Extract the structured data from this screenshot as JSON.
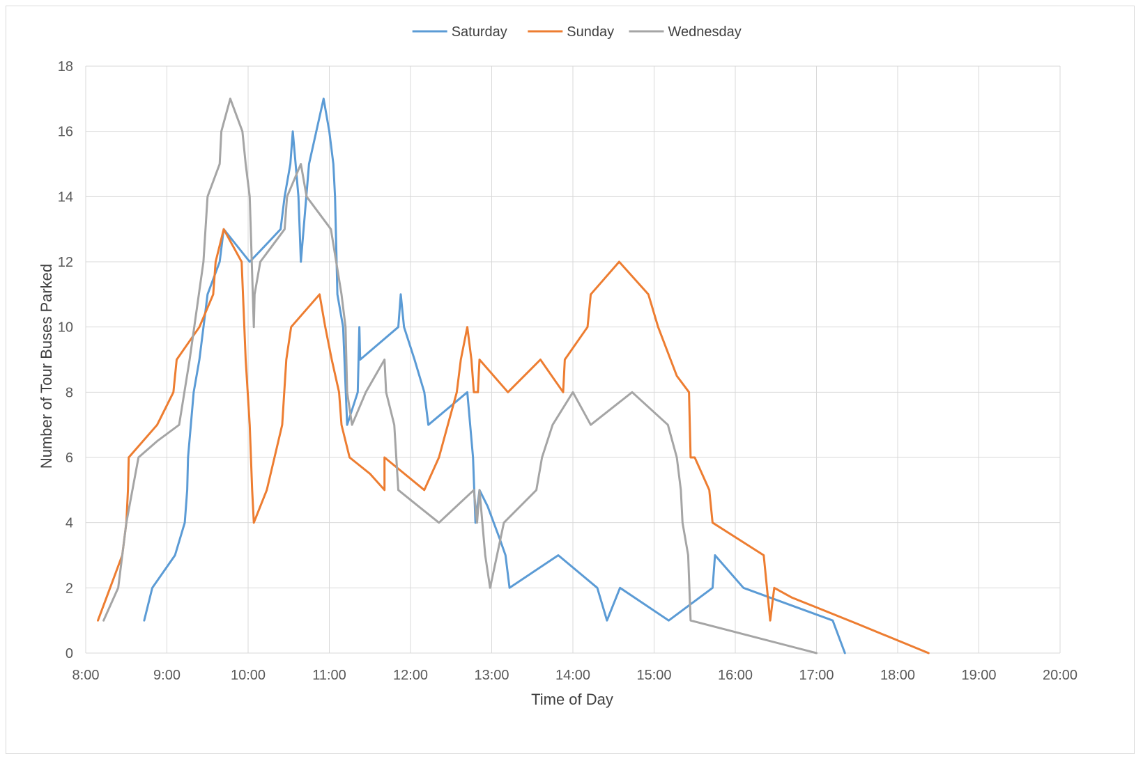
{
  "chart_data": {
    "type": "line",
    "xlabel": "Time of Day",
    "ylabel": "Number of Tour Buses Parked",
    "xlim": [
      8,
      20
    ],
    "ylim": [
      0,
      18
    ],
    "x_ticks": [
      "8:00",
      "9:00",
      "10:00",
      "11:00",
      "12:00",
      "13:00",
      "14:00",
      "15:00",
      "16:00",
      "17:00",
      "18:00",
      "19:00",
      "20:00"
    ],
    "y_ticks": [
      0,
      2,
      4,
      6,
      8,
      10,
      12,
      14,
      16,
      18
    ],
    "grid": true,
    "legend_position": "top",
    "series": [
      {
        "name": "Saturday",
        "color": "#5b9bd5",
        "points": [
          [
            8.72,
            1
          ],
          [
            8.82,
            2
          ],
          [
            9.1,
            3
          ],
          [
            9.22,
            4
          ],
          [
            9.25,
            5
          ],
          [
            9.26,
            6
          ],
          [
            9.33,
            8
          ],
          [
            9.4,
            9
          ],
          [
            9.5,
            11
          ],
          [
            9.65,
            12
          ],
          [
            9.7,
            13
          ],
          [
            10.02,
            12
          ],
          [
            10.25,
            12.6
          ],
          [
            10.4,
            13
          ],
          [
            10.45,
            14
          ],
          [
            10.52,
            15
          ],
          [
            10.55,
            16
          ],
          [
            10.62,
            14
          ],
          [
            10.65,
            12
          ],
          [
            10.75,
            15
          ],
          [
            10.93,
            17
          ],
          [
            11.0,
            16
          ],
          [
            11.05,
            15
          ],
          [
            11.07,
            14
          ],
          [
            11.1,
            11
          ],
          [
            11.17,
            10
          ],
          [
            11.22,
            7
          ],
          [
            11.35,
            8
          ],
          [
            11.37,
            10
          ],
          [
            11.38,
            9
          ],
          [
            11.85,
            10
          ],
          [
            11.88,
            11
          ],
          [
            11.92,
            10
          ],
          [
            12.05,
            9
          ],
          [
            12.17,
            8
          ],
          [
            12.22,
            7
          ],
          [
            12.7,
            8
          ],
          [
            12.77,
            6
          ],
          [
            12.8,
            4
          ],
          [
            12.85,
            5
          ],
          [
            12.95,
            4.5
          ],
          [
            13.1,
            3.5
          ],
          [
            13.17,
            3
          ],
          [
            13.22,
            2
          ],
          [
            13.82,
            3
          ],
          [
            14.3,
            2
          ],
          [
            14.42,
            1
          ],
          [
            14.58,
            2
          ],
          [
            15.18,
            1
          ],
          [
            15.72,
            2
          ],
          [
            15.75,
            3
          ],
          [
            16.1,
            2
          ],
          [
            17.2,
            1
          ],
          [
            17.35,
            0
          ]
        ]
      },
      {
        "name": "Sunday",
        "color": "#ed7d31",
        "points": [
          [
            8.15,
            1
          ],
          [
            8.3,
            2
          ],
          [
            8.45,
            3
          ],
          [
            8.5,
            4
          ],
          [
            8.52,
            5
          ],
          [
            8.53,
            6
          ],
          [
            8.88,
            7
          ],
          [
            9.08,
            8
          ],
          [
            9.12,
            9
          ],
          [
            9.4,
            10
          ],
          [
            9.57,
            11
          ],
          [
            9.6,
            12
          ],
          [
            9.7,
            13
          ],
          [
            9.92,
            12
          ],
          [
            9.97,
            9
          ],
          [
            10.02,
            7
          ],
          [
            10.05,
            5
          ],
          [
            10.07,
            4
          ],
          [
            10.23,
            5
          ],
          [
            10.42,
            7
          ],
          [
            10.47,
            9
          ],
          [
            10.53,
            10
          ],
          [
            10.88,
            11
          ],
          [
            10.95,
            10
          ],
          [
            11.03,
            9
          ],
          [
            11.12,
            8
          ],
          [
            11.15,
            7
          ],
          [
            11.25,
            6
          ],
          [
            11.5,
            5.5
          ],
          [
            11.68,
            5
          ],
          [
            11.68,
            6
          ],
          [
            12.17,
            5
          ],
          [
            12.35,
            6
          ],
          [
            12.57,
            8
          ],
          [
            12.62,
            9
          ],
          [
            12.7,
            10
          ],
          [
            12.75,
            9
          ],
          [
            12.78,
            8
          ],
          [
            12.83,
            8
          ],
          [
            12.85,
            9
          ],
          [
            13.2,
            8
          ],
          [
            13.6,
            9
          ],
          [
            13.88,
            8
          ],
          [
            13.9,
            9
          ],
          [
            14.18,
            10
          ],
          [
            14.22,
            11
          ],
          [
            14.57,
            12
          ],
          [
            14.93,
            11
          ],
          [
            15.05,
            10
          ],
          [
            15.28,
            8.5
          ],
          [
            15.43,
            8
          ],
          [
            15.45,
            6
          ],
          [
            15.5,
            6
          ],
          [
            15.68,
            5
          ],
          [
            15.72,
            4
          ],
          [
            16.35,
            3
          ],
          [
            16.43,
            1
          ],
          [
            16.48,
            2
          ],
          [
            16.7,
            1.7
          ],
          [
            17.0,
            1.4
          ],
          [
            17.5,
            0.9
          ],
          [
            18.38,
            0
          ]
        ]
      },
      {
        "name": "Wednesday",
        "color": "#a5a5a5",
        "points": [
          [
            8.22,
            1
          ],
          [
            8.4,
            2
          ],
          [
            8.5,
            4
          ],
          [
            8.65,
            6
          ],
          [
            8.88,
            6.5
          ],
          [
            9.15,
            7
          ],
          [
            9.28,
            9
          ],
          [
            9.45,
            12
          ],
          [
            9.5,
            14
          ],
          [
            9.65,
            15
          ],
          [
            9.67,
            16
          ],
          [
            9.78,
            17
          ],
          [
            9.93,
            16
          ],
          [
            9.97,
            15
          ],
          [
            10.02,
            14
          ],
          [
            10.07,
            10
          ],
          [
            10.08,
            11
          ],
          [
            10.15,
            12
          ],
          [
            10.45,
            13
          ],
          [
            10.48,
            14
          ],
          [
            10.65,
            15
          ],
          [
            10.72,
            14
          ],
          [
            11.02,
            13
          ],
          [
            11.15,
            11
          ],
          [
            11.2,
            10
          ],
          [
            11.22,
            8
          ],
          [
            11.28,
            7
          ],
          [
            11.45,
            8
          ],
          [
            11.68,
            9
          ],
          [
            11.7,
            8
          ],
          [
            11.8,
            7
          ],
          [
            11.85,
            5
          ],
          [
            12.1,
            4.5
          ],
          [
            12.35,
            4
          ],
          [
            12.78,
            5
          ],
          [
            12.82,
            4
          ],
          [
            12.85,
            5
          ],
          [
            12.92,
            3
          ],
          [
            12.98,
            2
          ],
          [
            13.15,
            4
          ],
          [
            13.55,
            5
          ],
          [
            13.62,
            6
          ],
          [
            13.75,
            7
          ],
          [
            14.0,
            8
          ],
          [
            14.22,
            7
          ],
          [
            14.73,
            8
          ],
          [
            15.17,
            7
          ],
          [
            15.28,
            6
          ],
          [
            15.33,
            5
          ],
          [
            15.35,
            4
          ],
          [
            15.42,
            3
          ],
          [
            15.45,
            1
          ],
          [
            17.0,
            0
          ]
        ]
      }
    ]
  }
}
